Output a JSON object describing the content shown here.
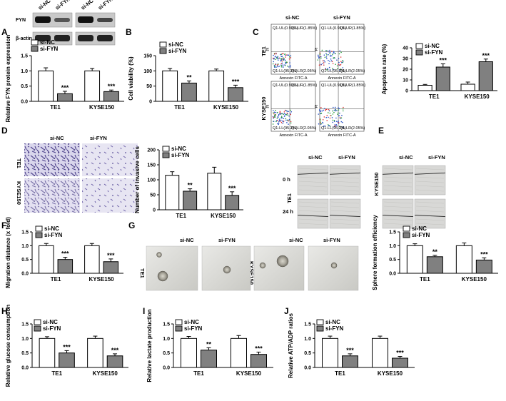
{
  "panel_letters": [
    "A",
    "B",
    "C",
    "D",
    "E",
    "F",
    "G",
    "H",
    "I",
    "J"
  ],
  "western": {
    "lanes": [
      "si-NC",
      "si-FYN",
      "si-NC",
      "si-FYN"
    ],
    "proteins": [
      "FYN",
      "β-actin"
    ]
  },
  "groups": {
    "control": "si-NC",
    "treatment": "si-FYN"
  },
  "cell_lines": [
    "TE1",
    "KYSE150"
  ],
  "colors": {
    "control": "#ffffff",
    "treatment": "#808080"
  },
  "flow": {
    "col_labels": [
      "si-NC",
      "si-FYN"
    ],
    "row_labels": [
      "TE1",
      "KYSE150"
    ],
    "axis_x": "Annexin FITC-A",
    "axis_y": "PI",
    "quadrant_text": [
      "Q1-UL(0.91%)",
      "Q1-UR(1.85%)",
      "Q1-LL(95.2%)",
      "Q1-LR(2.05%)"
    ]
  },
  "invasion": {
    "col_labels": [
      "si-NC",
      "si-FYN"
    ],
    "row_labels": [
      "TE1",
      "KYSE150"
    ]
  },
  "wound": {
    "col_labels": [
      "si-NC",
      "si-FYN",
      "si-NC",
      "si-FYN"
    ],
    "time_labels": [
      "0 h",
      "24 h"
    ],
    "cell_labels": [
      "TE1",
      "KYSE150"
    ]
  },
  "sphere": {
    "col_labels": [
      "si-NC",
      "si-FYN",
      "si-NC",
      "si-FYN"
    ],
    "cell_labels": [
      "TE1",
      "KYSE150"
    ]
  },
  "chart_data": [
    {
      "id": "A",
      "type": "bar",
      "categories": [
        "TE1",
        "KYSE150"
      ],
      "ylabel": "Relative FYN protein expression",
      "ylim": [
        0,
        1.5
      ],
      "yticks": [
        "0.0",
        "0.5",
        "1.0",
        "1.5"
      ],
      "yticks_v": [
        0,
        0.5,
        1,
        1.5
      ],
      "series": [
        {
          "name": "si-NC",
          "values": [
            1.0,
            1.0
          ],
          "errors": [
            0.1,
            0.08
          ]
        },
        {
          "name": "si-FYN",
          "values": [
            0.25,
            0.32
          ],
          "errors": [
            0.08,
            0.05
          ]
        }
      ],
      "significance": [
        "***",
        "***"
      ]
    },
    {
      "id": "B",
      "type": "bar",
      "categories": [
        "TE1",
        "KYSE150"
      ],
      "ylabel": "Cell viability (%)",
      "ylim": [
        0,
        150
      ],
      "yticks": [
        "0",
        "50",
        "100",
        "150"
      ],
      "yticks_v": [
        0,
        50,
        100,
        150
      ],
      "series": [
        {
          "name": "si-NC",
          "values": [
            100,
            100
          ],
          "errors": [
            8,
            6
          ]
        },
        {
          "name": "si-FYN",
          "values": [
            60,
            45
          ],
          "errors": [
            7,
            8
          ]
        }
      ],
      "significance": [
        "**",
        "***"
      ]
    },
    {
      "id": "C",
      "type": "bar",
      "categories": [
        "TE1",
        "KYSE150"
      ],
      "ylabel": "Apoptosis rate (%)",
      "ylim": [
        0,
        40
      ],
      "yticks": [
        "0",
        "10",
        "20",
        "30",
        "40"
      ],
      "yticks_v": [
        0,
        10,
        20,
        30,
        40
      ],
      "series": [
        {
          "name": "si-NC",
          "values": [
            5,
            6
          ],
          "errors": [
            0.8,
            2
          ]
        },
        {
          "name": "si-FYN",
          "values": [
            22,
            27
          ],
          "errors": [
            3,
            2.5
          ]
        }
      ],
      "significance": [
        "***",
        "***"
      ]
    },
    {
      "id": "D",
      "type": "bar",
      "categories": [
        "TE1",
        "KYSE150"
      ],
      "ylabel": "Number of invasive cells",
      "ylim": [
        0,
        200
      ],
      "yticks": [
        "0",
        "50",
        "100",
        "150",
        "200"
      ],
      "yticks_v": [
        0,
        50,
        100,
        150,
        200
      ],
      "series": [
        {
          "name": "si-NC",
          "values": [
            115,
            122
          ],
          "errors": [
            12,
            20
          ]
        },
        {
          "name": "si-FYN",
          "values": [
            62,
            48
          ],
          "errors": [
            8,
            12
          ]
        }
      ],
      "significance": [
        "**",
        "***"
      ]
    },
    {
      "id": "F",
      "type": "bar",
      "categories": [
        "TE1",
        "KYSE150"
      ],
      "ylabel": "Migration distance (x fold)",
      "ylim": [
        0,
        1.5
      ],
      "yticks": [
        "0.0",
        "0.5",
        "1.0",
        "1.5"
      ],
      "yticks_v": [
        0,
        0.5,
        1,
        1.5
      ],
      "series": [
        {
          "name": "si-NC",
          "values": [
            1.0,
            1.0
          ],
          "errors": [
            0.08,
            0.08
          ]
        },
        {
          "name": "si-FYN",
          "values": [
            0.5,
            0.42
          ],
          "errors": [
            0.08,
            0.1
          ]
        }
      ],
      "significance": [
        "***",
        "***"
      ]
    },
    {
      "id": "G",
      "type": "bar",
      "categories": [
        "TE1",
        "KYSE150"
      ],
      "ylabel": "Sphere formation efficiency",
      "ylim": [
        0,
        1.5
      ],
      "yticks": [
        "0.0",
        "0.5",
        "1.0",
        "1.5"
      ],
      "yticks_v": [
        0,
        0.5,
        1,
        1.5
      ],
      "series": [
        {
          "name": "si-NC",
          "values": [
            1.0,
            1.0
          ],
          "errors": [
            0.07,
            0.1
          ]
        },
        {
          "name": "si-FYN",
          "values": [
            0.6,
            0.48
          ],
          "errors": [
            0.05,
            0.08
          ]
        }
      ],
      "significance": [
        "**",
        "***"
      ]
    },
    {
      "id": "H",
      "type": "bar",
      "categories": [
        "TE1",
        "KYSE150"
      ],
      "ylabel": "Relative glucose consumption",
      "ylim": [
        0,
        1.5
      ],
      "yticks": [
        "0.0",
        "0.5",
        "1.0",
        "1.5"
      ],
      "yticks_v": [
        0,
        0.5,
        1,
        1.5
      ],
      "series": [
        {
          "name": "si-NC",
          "values": [
            1.0,
            1.0
          ],
          "errors": [
            0.06,
            0.08
          ]
        },
        {
          "name": "si-FYN",
          "values": [
            0.5,
            0.4
          ],
          "errors": [
            0.08,
            0.07
          ]
        }
      ],
      "significance": [
        "***",
        "***"
      ]
    },
    {
      "id": "I",
      "type": "bar",
      "categories": [
        "TE1",
        "KYSE150"
      ],
      "ylabel": "Relative lactate production",
      "ylim": [
        0,
        1.5
      ],
      "yticks": [
        "0.0",
        "0.5",
        "1.0",
        "1.5"
      ],
      "yticks_v": [
        0,
        0.5,
        1,
        1.5
      ],
      "series": [
        {
          "name": "si-NC",
          "values": [
            1.0,
            1.0
          ],
          "errors": [
            0.07,
            0.1
          ]
        },
        {
          "name": "si-FYN",
          "values": [
            0.6,
            0.45
          ],
          "errors": [
            0.08,
            0.08
          ]
        }
      ],
      "significance": [
        "**",
        "***"
      ]
    },
    {
      "id": "J",
      "type": "bar",
      "categories": [
        "TE1",
        "KYSE150"
      ],
      "ylabel": "Relative ATP/ADP ratios",
      "ylim": [
        0,
        1.5
      ],
      "yticks": [
        "0.0",
        "0.5",
        "1.0",
        "1.5"
      ],
      "yticks_v": [
        0,
        0.5,
        1,
        1.5
      ],
      "series": [
        {
          "name": "si-NC",
          "values": [
            1.0,
            1.0
          ],
          "errors": [
            0.08,
            0.08
          ]
        },
        {
          "name": "si-FYN",
          "values": [
            0.4,
            0.32
          ],
          "errors": [
            0.07,
            0.06
          ]
        }
      ],
      "significance": [
        "***",
        "***"
      ]
    }
  ]
}
